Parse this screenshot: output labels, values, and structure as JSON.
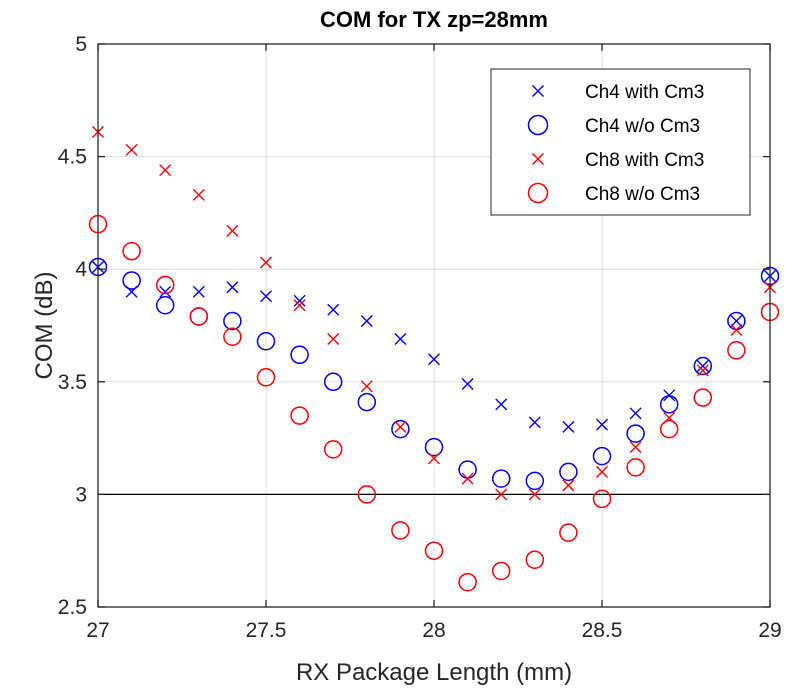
{
  "chart_data": {
    "type": "scatter",
    "title": "COM for TX zp=28mm",
    "xlabel": "RX Package Length (mm)",
    "ylabel": "COM (dB)",
    "xlim": [
      27,
      29
    ],
    "ylim": [
      2.5,
      5
    ],
    "xticks": [
      27,
      27.5,
      28,
      28.5,
      29
    ],
    "yticks": [
      2.5,
      3,
      3.5,
      4,
      4.5,
      5
    ],
    "xtick_labels": [
      "27",
      "27.5",
      "28",
      "28.5",
      "29"
    ],
    "ytick_labels": [
      "2.5",
      "3",
      "3.5",
      "4",
      "4.5",
      "5"
    ],
    "grid": true,
    "reference_line": {
      "y": 3,
      "color": "#000000"
    },
    "legend_position": "top-right",
    "x": [
      27.0,
      27.1,
      27.2,
      27.3,
      27.4,
      27.5,
      27.6,
      27.7,
      27.8,
      27.9,
      28.0,
      28.1,
      28.2,
      28.3,
      28.4,
      28.5,
      28.6,
      28.7,
      28.8,
      28.9,
      29.0
    ],
    "series": [
      {
        "name": "Ch4 with Cm3",
        "marker": "x",
        "color": "#0000ff",
        "values": [
          4.01,
          3.9,
          3.9,
          3.9,
          3.92,
          3.88,
          3.86,
          3.82,
          3.77,
          3.69,
          3.6,
          3.49,
          3.4,
          3.32,
          3.3,
          3.31,
          3.36,
          3.44,
          3.57,
          3.77,
          3.97
        ]
      },
      {
        "name": "Ch4 w/o Cm3",
        "marker": "o",
        "color": "#0000ff",
        "values": [
          4.01,
          3.95,
          3.84,
          3.79,
          3.77,
          3.68,
          3.62,
          3.5,
          3.41,
          3.29,
          3.21,
          3.11,
          3.07,
          3.06,
          3.1,
          3.17,
          3.27,
          3.4,
          3.57,
          3.77,
          3.97
        ]
      },
      {
        "name": "Ch8 with Cm3",
        "marker": "x",
        "color": "#ff0000",
        "values": [
          4.61,
          4.53,
          4.44,
          4.33,
          4.17,
          4.03,
          3.84,
          3.69,
          3.48,
          3.3,
          3.16,
          3.07,
          3.0,
          3.0,
          3.04,
          3.1,
          3.21,
          3.34,
          3.55,
          3.73,
          3.92
        ]
      },
      {
        "name": "Ch8 w/o Cm3",
        "marker": "o",
        "color": "#ff0000",
        "values": [
          4.2,
          4.08,
          3.93,
          3.79,
          3.7,
          3.52,
          3.35,
          3.2,
          3.0,
          2.84,
          2.75,
          2.61,
          2.66,
          2.71,
          2.83,
          2.98,
          3.12,
          3.29,
          3.43,
          3.64,
          3.81
        ]
      }
    ]
  }
}
